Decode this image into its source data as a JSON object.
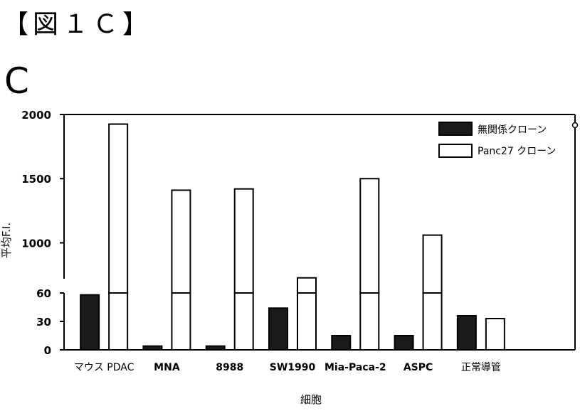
{
  "figure_label": "【図１Ｃ】",
  "panel_letter": "C",
  "chart_data": {
    "type": "bar",
    "title": "",
    "xlabel": "細胞",
    "ylabel": "平均F.I.",
    "categories": [
      "マウス PDAC",
      "MNA",
      "8988",
      "SW1990",
      "Mia-Paca-2",
      "ASPC",
      "正常導管"
    ],
    "series": [
      {
        "name": "無関係クローン",
        "color": "#1a1a1a",
        "values": [
          58,
          4,
          4,
          44,
          15,
          15,
          36
        ]
      },
      {
        "name": "Panc27 クローン",
        "color": "#ffffff",
        "values": [
          1925,
          1410,
          1420,
          727,
          1500,
          1060,
          33
        ]
      }
    ],
    "axis_break": true,
    "lower_segment": {
      "ylim": [
        0,
        60
      ],
      "ticks": [
        0,
        30,
        60
      ]
    },
    "upper_segment": {
      "ylim": [
        720,
        2000
      ],
      "ticks": [
        1000,
        1500,
        2000
      ]
    },
    "tick_labels": [
      "0",
      "30",
      "60",
      "1000",
      "1500",
      "2000"
    ],
    "legend_position": "top-right",
    "grid": false
  }
}
